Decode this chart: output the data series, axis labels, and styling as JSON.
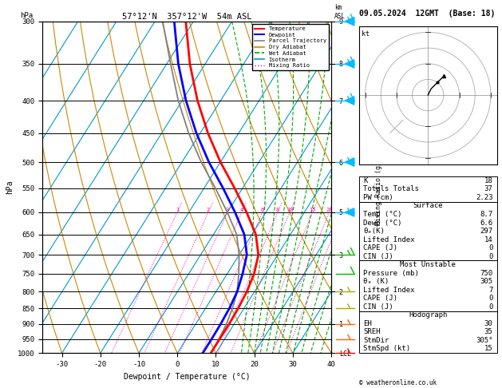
{
  "title_left": "57°12'N  357°12'W  54m ASL",
  "title_right": "09.05.2024  12GMT  (Base: 18)",
  "xlabel": "Dewpoint / Temperature (°C)",
  "ylabel_left": "hPa",
  "pressure_levels": [
    300,
    350,
    400,
    450,
    500,
    550,
    600,
    650,
    700,
    750,
    800,
    850,
    900,
    950,
    1000
  ],
  "temp_x": [
    -52,
    -44,
    -36,
    -28,
    -20,
    -12,
    -5,
    1,
    5,
    7,
    8,
    8.5,
    8.7,
    8.7,
    8.7
  ],
  "dewp_x": [
    -55,
    -47,
    -39,
    -31,
    -23,
    -15,
    -8,
    -2,
    2,
    4,
    5.5,
    6.2,
    6.5,
    6.6,
    6.6
  ],
  "parcel_x": [
    -58,
    -49,
    -41,
    -33,
    -25,
    -17,
    -10,
    -4,
    0,
    3,
    5.5,
    7.0,
    8.0,
    8.5,
    8.7
  ],
  "temp_color": "#FF0000",
  "dewp_color": "#0000FF",
  "parcel_color": "#808080",
  "dry_adiabat_color": "#CC8800",
  "wet_adiabat_color": "#00AA00",
  "isotherm_color": "#0099CC",
  "mixing_ratio_color": "#FF00AA",
  "xmin": -35,
  "xmax": 40,
  "pmin": 300,
  "pmax": 1000,
  "skew_factor": 45.0,
  "mixing_ratio_values": [
    1,
    2,
    3,
    4,
    6,
    8,
    10,
    15,
    20,
    25
  ],
  "km_labels": {
    "300": "9",
    "350": "8",
    "400": "7",
    "500": "6",
    "600": "5",
    "700": "3",
    "800": "2",
    "900": "1",
    "1000": "LCL"
  },
  "wind_barbs": [
    {
      "p": 300,
      "color": "#00BBFF",
      "type": "50+10"
    },
    {
      "p": 350,
      "color": "#00BBFF",
      "type": "50+10"
    },
    {
      "p": 400,
      "color": "#00BBFF",
      "type": "50+10"
    },
    {
      "p": 500,
      "color": "#00BBFF",
      "type": "50+5"
    },
    {
      "p": 600,
      "color": "#00BBFF",
      "type": "50+5"
    },
    {
      "p": 700,
      "color": "#00BB00",
      "type": "10+5"
    },
    {
      "p": 750,
      "color": "#00BB00",
      "type": "10"
    },
    {
      "p": 800,
      "color": "#AAAA00",
      "type": "5+5"
    },
    {
      "p": 850,
      "color": "#AAAA00",
      "type": "5"
    },
    {
      "p": 900,
      "color": "#FF6600",
      "type": "5"
    },
    {
      "p": 950,
      "color": "#FF6600",
      "type": "5"
    },
    {
      "p": 1000,
      "color": "#FF0000",
      "type": "5"
    }
  ],
  "stats": {
    "K": 18,
    "Totals_Totals": 37,
    "PW_cm": "2.23",
    "Surface_Temp": "8.7",
    "Surface_Dewp": "6.6",
    "Surface_theta_e": 297,
    "Surface_LI": 14,
    "Surface_CAPE": 0,
    "Surface_CIN": 0,
    "MU_Pressure": 750,
    "MU_theta_e": 305,
    "MU_LI": 7,
    "MU_CAPE": 0,
    "MU_CIN": 0,
    "EH": 30,
    "SREH": 35,
    "StmDir": "305°",
    "StmSpd_kt": 15
  }
}
